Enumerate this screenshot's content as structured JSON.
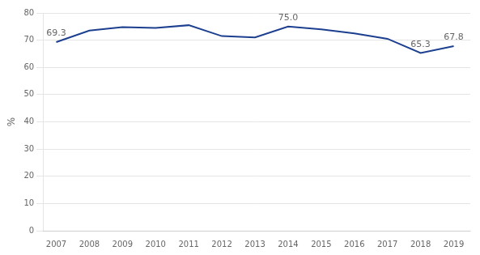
{
  "chart_data": {
    "type": "line",
    "ylabel": "%",
    "x": [
      2007,
      2008,
      2009,
      2010,
      2011,
      2012,
      2013,
      2014,
      2015,
      2016,
      2017,
      2018,
      2019
    ],
    "values": [
      69.3,
      73.5,
      74.8,
      74.5,
      75.5,
      71.5,
      71.0,
      75.0,
      74.0,
      72.5,
      70.5,
      65.3,
      67.8
    ],
    "color": "#1c3f8f",
    "xlim": [
      2006.6,
      2019.5
    ],
    "xticks": [
      2007,
      2008,
      2009,
      2010,
      2011,
      2012,
      2013,
      2014,
      2015,
      2016,
      2017,
      2018,
      2019
    ],
    "ylim": [
      0,
      80
    ],
    "yticks": [
      0,
      10,
      20,
      30,
      40,
      50,
      60,
      70,
      80
    ],
    "grid": true,
    "annotations": [
      {
        "x": 2007,
        "value": 69.3,
        "label": "69.3"
      },
      {
        "x": 2014,
        "value": 75.0,
        "label": "75.0"
      },
      {
        "x": 2018,
        "value": 65.3,
        "label": "65.3"
      },
      {
        "x": 2019,
        "value": 67.8,
        "label": "67.8"
      }
    ]
  }
}
